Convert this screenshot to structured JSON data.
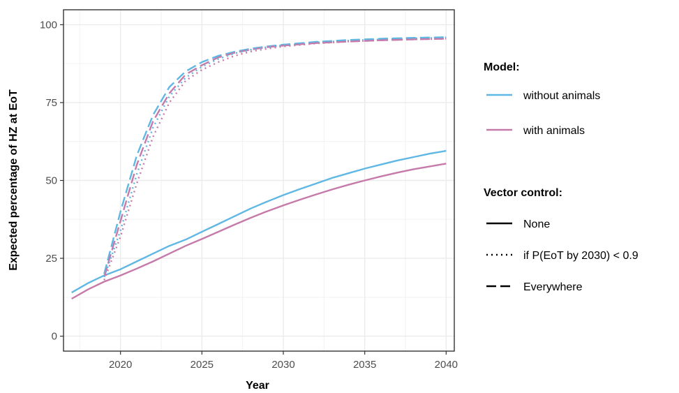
{
  "chart_data": {
    "type": "line",
    "xlabel": "Year",
    "ylabel": "Expected percentage of HZ at EoT",
    "xlim": [
      2016.5,
      2040.5
    ],
    "ylim": [
      -4.8,
      104.8
    ],
    "x_ticks": [
      "2020",
      "2025",
      "2030",
      "2035",
      "2040"
    ],
    "y_ticks": [
      "0",
      "25",
      "50",
      "75",
      "100"
    ],
    "grid": true,
    "legend_position": "right",
    "legend": {
      "model_title": "Model:",
      "model_items": [
        {
          "label": "without animals",
          "color": "#5fb7e4"
        },
        {
          "label": "with animals",
          "color": "#c57aa9"
        }
      ],
      "control_title": "Vector control:",
      "control_items": [
        {
          "label": "None",
          "dash": "solid"
        },
        {
          "label": "if P(EoT by 2030) < 0.9",
          "dash": "dotted"
        },
        {
          "label": "Everywhere",
          "dash": "dashed"
        }
      ]
    },
    "series": [
      {
        "name": "without animals, None",
        "model": "without animals",
        "control": "None",
        "color": "#5fb7e4",
        "dash": "solid",
        "x": [
          2017,
          2018,
          2019,
          2020,
          2021,
          2022,
          2023,
          2024,
          2025,
          2026,
          2027,
          2028,
          2029,
          2030,
          2031,
          2032,
          2033,
          2034,
          2035,
          2036,
          2037,
          2038,
          2039,
          2040
        ],
        "y": [
          14,
          17,
          19.5,
          21.5,
          24,
          26.5,
          29,
          31,
          33.5,
          36,
          38.5,
          41,
          43.2,
          45.3,
          47.2,
          49.0,
          50.8,
          52.3,
          53.8,
          55.1,
          56.4,
          57.5,
          58.6,
          59.5
        ]
      },
      {
        "name": "with animals, None",
        "model": "with animals",
        "control": "None",
        "color": "#c57aa9",
        "dash": "solid",
        "x": [
          2017,
          2018,
          2019,
          2020,
          2021,
          2022,
          2023,
          2024,
          2025,
          2026,
          2027,
          2028,
          2029,
          2030,
          2031,
          2032,
          2033,
          2034,
          2035,
          2036,
          2037,
          2038,
          2039,
          2040
        ],
        "y": [
          12,
          15,
          17.5,
          19.5,
          21.7,
          24,
          26.5,
          29,
          31.2,
          33.5,
          35.8,
          38,
          40.1,
          42,
          43.8,
          45.5,
          47.1,
          48.6,
          50.0,
          51.3,
          52.5,
          53.6,
          54.5,
          55.4
        ]
      },
      {
        "name": "without animals, Everywhere",
        "model": "without animals",
        "control": "Everywhere",
        "color": "#5fb7e4",
        "dash": "dashed",
        "x": [
          2019,
          2020,
          2021,
          2022,
          2023,
          2024,
          2025,
          2026,
          2027,
          2028,
          2029,
          2030,
          2032,
          2034,
          2036,
          2038,
          2040
        ],
        "y": [
          20,
          40,
          58,
          71,
          80,
          85,
          88,
          90,
          91.3,
          92.3,
          93,
          93.6,
          94.5,
          95.1,
          95.5,
          95.8,
          96
        ]
      },
      {
        "name": "with animals, Everywhere",
        "model": "with animals",
        "control": "Everywhere",
        "color": "#c57aa9",
        "dash": "dashed",
        "x": [
          2019,
          2020,
          2021,
          2022,
          2023,
          2024,
          2025,
          2026,
          2027,
          2028,
          2029,
          2030,
          2032,
          2034,
          2036,
          2038,
          2040
        ],
        "y": [
          19,
          37,
          55,
          69,
          78,
          84,
          87,
          89.5,
          91,
          92,
          92.8,
          93.3,
          94.1,
          94.6,
          95,
          95.3,
          95.5
        ]
      },
      {
        "name": "without animals, if P(EoT by 2030) < 0.9",
        "model": "without animals",
        "control": "if P(EoT by 2030) < 0.9",
        "color": "#5fb7e4",
        "dash": "dotted",
        "x": [
          2019,
          2020,
          2021,
          2022,
          2023,
          2024,
          2025,
          2026,
          2027,
          2028,
          2029,
          2030,
          2032,
          2034,
          2036,
          2038,
          2040
        ],
        "y": [
          19,
          34,
          52,
          67,
          77,
          83,
          86.5,
          89,
          90.8,
          92,
          92.8,
          93.4,
          94.3,
          94.9,
          95.3,
          95.6,
          95.9
        ]
      },
      {
        "name": "with animals, if P(EoT by 2030) < 0.9",
        "model": "with animals",
        "control": "if P(EoT by 2030) < 0.9",
        "color": "#c57aa9",
        "dash": "dotted",
        "x": [
          2019,
          2020,
          2021,
          2022,
          2023,
          2024,
          2025,
          2026,
          2027,
          2028,
          2029,
          2030,
          2032,
          2034,
          2036,
          2038,
          2040
        ],
        "y": [
          18,
          32,
          49,
          64,
          75,
          82,
          85.5,
          88,
          90,
          91.4,
          92.3,
          93,
          94,
          94.6,
          95,
          95.3,
          95.5
        ]
      }
    ]
  }
}
